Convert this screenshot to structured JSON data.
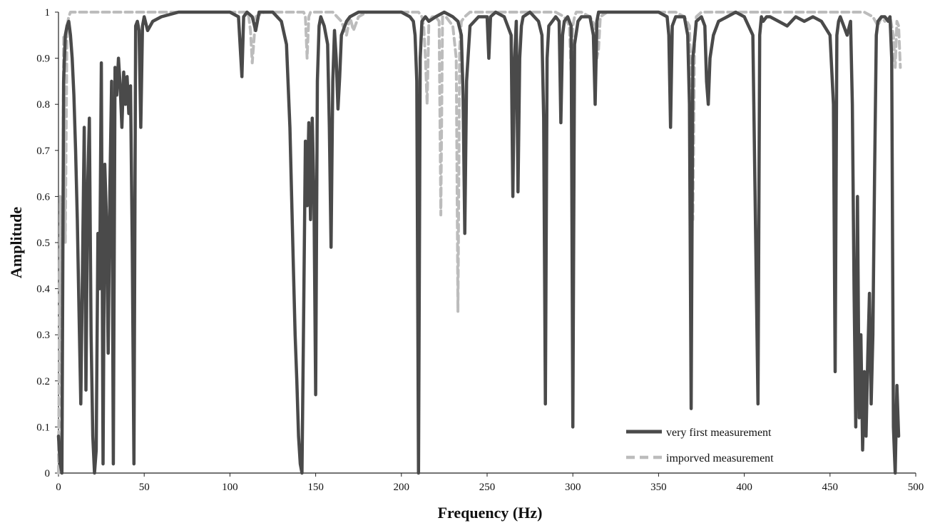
{
  "chart_data": {
    "type": "line",
    "title": "",
    "xlabel": "Frequency (Hz)",
    "ylabel": "Amplitude",
    "xlim": [
      0,
      500
    ],
    "ylim": [
      0,
      1
    ],
    "xticks": [
      0,
      50,
      100,
      150,
      200,
      250,
      300,
      350,
      400,
      450,
      500
    ],
    "yticks": [
      0,
      0.1,
      0.2,
      0.3,
      0.4,
      0.5,
      0.6,
      0.7,
      0.8,
      0.9,
      1
    ],
    "ytick_labels": [
      "0",
      "0.1",
      "0.2",
      "0.3",
      "0.4",
      "0.5",
      "0.6",
      "0.7",
      "0.8",
      "0.9",
      "1"
    ],
    "grid": false,
    "legend_position": "bottom-right",
    "series": [
      {
        "name": "very first measurement",
        "color": "#4a4a4a",
        "style": "solid",
        "x": [
          0,
          1,
          2,
          3,
          4,
          5,
          6,
          7,
          8,
          9,
          10,
          11,
          12,
          13,
          14,
          15,
          16,
          17,
          18,
          19,
          20,
          21,
          22,
          23,
          24,
          25,
          26,
          27,
          28,
          29,
          30,
          31,
          32,
          33,
          34,
          35,
          36,
          37,
          38,
          39,
          40,
          41,
          42,
          43,
          44,
          45,
          46,
          47,
          48,
          49,
          50,
          52,
          55,
          60,
          70,
          80,
          90,
          100,
          105,
          107,
          108,
          110,
          113,
          115,
          117,
          120,
          125,
          130,
          133,
          135,
          136,
          137,
          138,
          139,
          140,
          141,
          142,
          143,
          144,
          145,
          146,
          147,
          148,
          149,
          150,
          151,
          152,
          153,
          155,
          157,
          158,
          159,
          160,
          161,
          162,
          163,
          164,
          165,
          168,
          170,
          175,
          180,
          190,
          200,
          205,
          207,
          208,
          209,
          210,
          211,
          212,
          214,
          216,
          220,
          225,
          230,
          233,
          235,
          236,
          237,
          238,
          240,
          245,
          250,
          251,
          252,
          255,
          260,
          264,
          265,
          266,
          267,
          268,
          269,
          270,
          271,
          275,
          280,
          282,
          283,
          284,
          285,
          286,
          288,
          290,
          292,
          293,
          294,
          295,
          297,
          299,
          300,
          301,
          303,
          305,
          310,
          312,
          313,
          314,
          315,
          320,
          330,
          340,
          350,
          355,
          356,
          357,
          358,
          360,
          365,
          367,
          368,
          369,
          370,
          372,
          375,
          377,
          378,
          379,
          380,
          382,
          385,
          390,
          395,
          400,
          405,
          408,
          409,
          410,
          411,
          413,
          415,
          420,
          425,
          430,
          435,
          440,
          445,
          450,
          452,
          453,
          454,
          455,
          456,
          458,
          460,
          462,
          463,
          464,
          465,
          466,
          467,
          468,
          469,
          470,
          471,
          472,
          473,
          474,
          475,
          476,
          477,
          478,
          480,
          482,
          484,
          485,
          486,
          487,
          488,
          489,
          490
        ],
        "y": [
          0.08,
          0.02,
          0.0,
          0.85,
          0.95,
          0.97,
          0.98,
          0.95,
          0.9,
          0.82,
          0.7,
          0.55,
          0.35,
          0.15,
          0.45,
          0.75,
          0.18,
          0.62,
          0.77,
          0.3,
          0.08,
          0.0,
          0.05,
          0.52,
          0.4,
          0.89,
          0.02,
          0.67,
          0.55,
          0.26,
          0.62,
          0.85,
          0.02,
          0.88,
          0.82,
          0.9,
          0.84,
          0.75,
          0.87,
          0.8,
          0.86,
          0.78,
          0.84,
          0.5,
          0.02,
          0.97,
          0.98,
          0.96,
          0.75,
          0.97,
          0.99,
          0.96,
          0.98,
          0.99,
          1.0,
          1.0,
          1.0,
          1.0,
          0.99,
          0.86,
          0.99,
          1.0,
          0.99,
          0.96,
          1.0,
          1.0,
          1.0,
          0.98,
          0.93,
          0.75,
          0.6,
          0.45,
          0.3,
          0.2,
          0.08,
          0.02,
          0.0,
          0.35,
          0.72,
          0.58,
          0.76,
          0.55,
          0.77,
          0.6,
          0.17,
          0.85,
          0.97,
          0.99,
          0.97,
          0.93,
          0.75,
          0.49,
          0.85,
          0.96,
          0.9,
          0.79,
          0.86,
          0.95,
          0.98,
          0.99,
          1.0,
          1.0,
          1.0,
          1.0,
          0.99,
          0.98,
          0.95,
          0.85,
          0.0,
          0.9,
          0.98,
          0.99,
          0.98,
          0.99,
          1.0,
          0.99,
          0.98,
          0.95,
          0.82,
          0.52,
          0.85,
          0.97,
          0.99,
          0.99,
          0.9,
          0.99,
          1.0,
          0.99,
          0.95,
          0.6,
          0.9,
          0.98,
          0.61,
          0.9,
          0.97,
          0.99,
          1.0,
          0.98,
          0.95,
          0.77,
          0.15,
          0.9,
          0.97,
          0.98,
          0.99,
          0.98,
          0.76,
          0.95,
          0.98,
          0.99,
          0.97,
          0.1,
          0.93,
          0.98,
          0.99,
          0.99,
          0.95,
          0.8,
          0.98,
          1.0,
          1.0,
          1.0,
          1.0,
          1.0,
          0.99,
          0.95,
          0.75,
          0.97,
          0.99,
          0.99,
          0.95,
          0.8,
          0.14,
          0.9,
          0.98,
          0.99,
          0.97,
          0.85,
          0.8,
          0.9,
          0.95,
          0.98,
          0.99,
          1.0,
          0.99,
          0.95,
          0.15,
          0.95,
          0.99,
          0.98,
          0.99,
          0.99,
          0.98,
          0.97,
          0.99,
          0.98,
          0.99,
          0.98,
          0.95,
          0.8,
          0.22,
          0.95,
          0.98,
          0.99,
          0.97,
          0.95,
          0.98,
          0.8,
          0.4,
          0.1,
          0.6,
          0.12,
          0.3,
          0.05,
          0.22,
          0.08,
          0.25,
          0.39,
          0.15,
          0.3,
          0.65,
          0.95,
          0.98,
          0.99,
          0.99,
          0.98,
          0.99,
          0.9,
          0.1,
          0.0,
          0.19,
          0.08
        ]
      },
      {
        "name": "imporved measurement",
        "color": "#bcbcbc",
        "style": "dashed",
        "x": [
          0,
          1,
          2,
          3,
          4,
          5,
          6,
          7,
          8,
          10,
          15,
          20,
          40,
          60,
          80,
          100,
          110,
          111,
          112,
          113,
          115,
          120,
          130,
          140,
          143,
          144,
          145,
          146,
          147,
          150,
          160,
          165,
          168,
          170,
          172,
          175,
          180,
          190,
          200,
          210,
          212,
          213,
          214,
          215,
          216,
          218,
          220,
          222,
          223,
          224,
          226,
          228,
          230,
          232,
          233,
          234,
          235,
          237,
          240,
          250,
          260,
          270,
          280,
          290,
          295,
          298,
          299,
          300,
          301,
          302,
          305,
          310,
          313,
          314,
          315,
          316,
          320,
          330,
          340,
          350,
          360,
          365,
          368,
          369,
          370,
          371,
          372,
          375,
          380,
          400,
          420,
          440,
          460,
          470,
          475,
          478,
          480,
          482,
          485,
          487,
          488,
          489,
          490,
          491
        ],
        "y": [
          0.0,
          0.6,
          0.0,
          0.95,
          0.5,
          0.97,
          0.99,
          1.0,
          1.0,
          1.0,
          1.0,
          1.0,
          1.0,
          1.0,
          1.0,
          1.0,
          1.0,
          0.99,
          0.96,
          0.89,
          0.99,
          1.0,
          1.0,
          1.0,
          1.0,
          0.99,
          0.9,
          0.99,
          1.0,
          1.0,
          1.0,
          0.98,
          0.95,
          0.99,
          0.96,
          0.99,
          1.0,
          1.0,
          1.0,
          1.0,
          0.99,
          0.97,
          0.9,
          0.8,
          0.98,
          0.99,
          0.99,
          0.98,
          0.56,
          0.99,
          0.99,
          0.98,
          0.97,
          0.9,
          0.35,
          0.92,
          0.98,
          0.99,
          1.0,
          1.0,
          1.0,
          1.0,
          1.0,
          1.0,
          0.99,
          0.97,
          0.87,
          0.97,
          0.99,
          1.0,
          1.0,
          0.99,
          0.97,
          0.9,
          0.92,
          0.99,
          1.0,
          1.0,
          1.0,
          1.0,
          1.0,
          0.99,
          0.97,
          0.85,
          0.55,
          0.93,
          0.99,
          1.0,
          1.0,
          1.0,
          1.0,
          1.0,
          1.0,
          1.0,
          0.99,
          0.97,
          0.99,
          0.98,
          0.99,
          0.95,
          0.88,
          0.98,
          0.97,
          0.88
        ]
      }
    ]
  }
}
